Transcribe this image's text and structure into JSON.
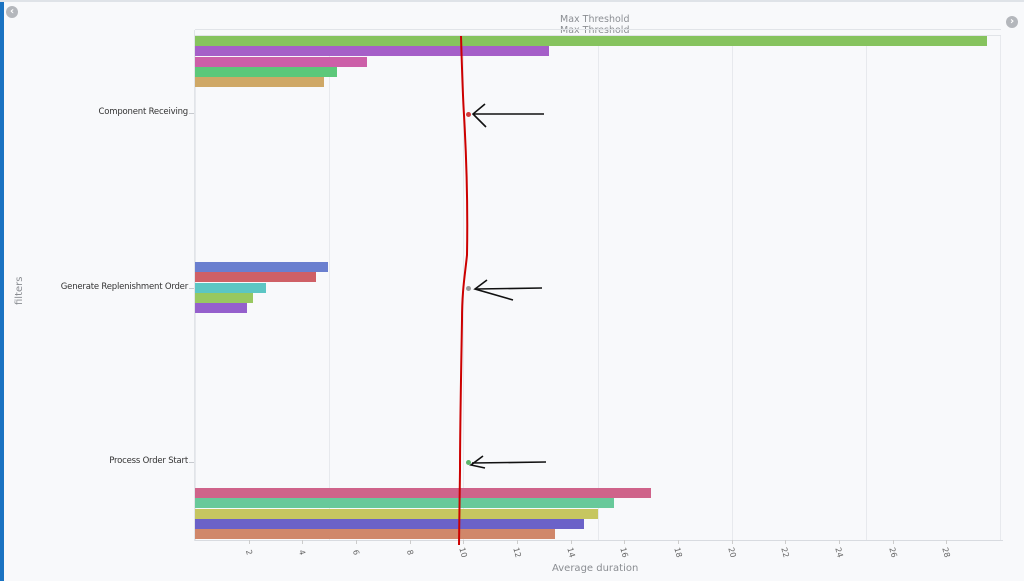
{
  "navigation": {
    "prev_icon": "chevron-left-circle-icon",
    "next_icon": "chevron-right-circle-icon"
  },
  "chart_data": {
    "type": "bar",
    "orientation": "horizontal",
    "title": "",
    "xlabel": "Average duration",
    "ylabel": "filters",
    "xlim": [
      0,
      30
    ],
    "x_ticks": [
      "2",
      "4",
      "6",
      "8",
      "10",
      "12",
      "14",
      "16",
      "18",
      "20",
      "22",
      "24",
      "26",
      "28"
    ],
    "grid": true,
    "categories": [
      "Component Receiving",
      "Generate Replenishment Order",
      "Process Order Start"
    ],
    "groups": [
      {
        "category": "Component Receiving",
        "bars": [
          {
            "color": "#86c35e",
            "value": 29.5
          },
          {
            "color": "#a55fc8",
            "value": 13.2
          },
          {
            "color": "#cc5fa8",
            "value": 6.4
          },
          {
            "color": "#5cc87a",
            "value": 5.3
          },
          {
            "color": "#cfa866",
            "value": 4.8
          }
        ],
        "threshold_marker": {
          "value": 10.1,
          "color": "#d33a3a"
        }
      },
      {
        "category": "Generate Replenishment Order",
        "bars": [
          {
            "color": "#6a7fcf",
            "value": 4.95
          },
          {
            "color": "#cf6066",
            "value": 4.5
          },
          {
            "color": "#5cc6c4",
            "value": 2.65
          },
          {
            "color": "#98c860",
            "value": 2.15
          },
          {
            "color": "#9560cc",
            "value": 1.95
          }
        ],
        "threshold_marker": {
          "value": 10.1,
          "color": "#9a9a9a"
        }
      },
      {
        "category": "Process Order Start",
        "bars": [
          {
            "color": "#cf638a",
            "value": 17.0
          },
          {
            "color": "#68c99a",
            "value": 15.6
          },
          {
            "color": "#c6c660",
            "value": 15.0
          },
          {
            "color": "#6b62c8",
            "value": 14.5
          },
          {
            "color": "#d0876a",
            "value": 13.4
          }
        ],
        "threshold_marker": {
          "value": 10.1,
          "color": "#5bb56a"
        }
      }
    ],
    "threshold_lines": [
      {
        "label": "Max Threshold"
      },
      {
        "label": "Max Threshold"
      }
    ],
    "annotations": {
      "hand_drawn_line": {
        "color": "#cc0000",
        "approx_value": 10
      },
      "arrows": 3
    }
  }
}
